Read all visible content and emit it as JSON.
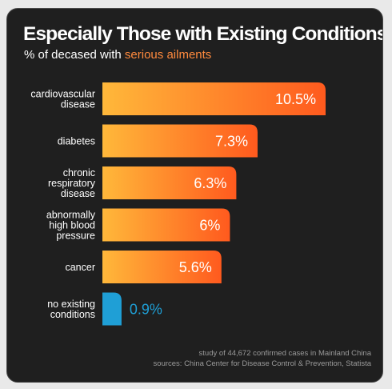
{
  "title": "Especially Those with Existing Conditions",
  "subtitle_prefix": "% of decased with",
  "subtitle_highlight": "serious ailments",
  "footer": {
    "note": "study of 44,672 confirmed cases in Mainland China",
    "sources": "sources: China Center for Disease Control & Prevention, Statista"
  },
  "colors": {
    "background": "#1f1f1f",
    "bar_gradient_start": "#ffb83a",
    "bar_gradient_end": "#ff5a1e",
    "accent_bar": "#1f9fd6",
    "accent_text": "#ff8a3d",
    "text": "#ffffff"
  },
  "chart_data": {
    "type": "bar",
    "orientation": "horizontal",
    "categories": [
      [
        "cardiovascular",
        "disease"
      ],
      [
        "diabetes"
      ],
      [
        "chronic",
        "respiratory",
        "disease"
      ],
      [
        "abnormally",
        "high blood",
        "pressure"
      ],
      [
        "cancer"
      ],
      [
        "no existing",
        "conditions"
      ]
    ],
    "values": [
      10.5,
      7.3,
      6.3,
      6,
      5.6,
      0.9
    ],
    "value_labels": [
      "10.5%",
      "7.3%",
      "6.3%",
      "6%",
      "5.6%",
      "0.9%"
    ],
    "highlight_index": 5,
    "xlim": [
      0,
      10.5
    ]
  }
}
